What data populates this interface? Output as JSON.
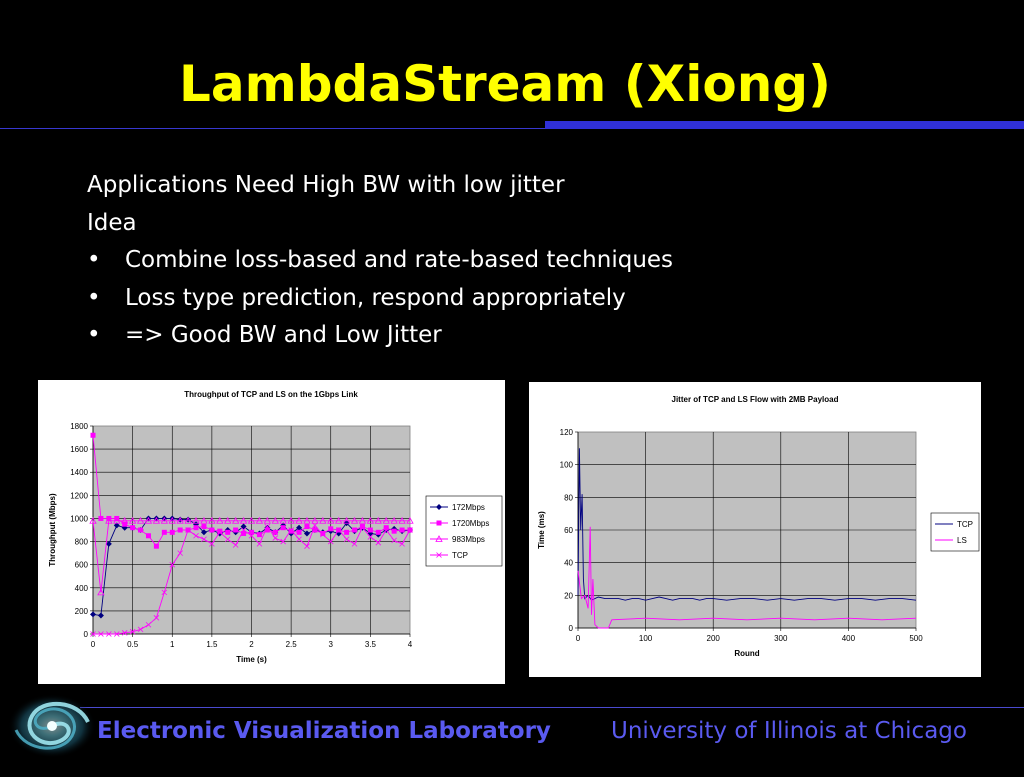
{
  "slide": {
    "title": "LambdaStream (Xiong)",
    "lines": [
      {
        "bullet": "",
        "text": "Applications Need High BW with low jitter"
      },
      {
        "bullet": "",
        "text": "Idea"
      },
      {
        "bullet": "•",
        "text": "Combine loss-based and rate-based techniques"
      },
      {
        "bullet": "•",
        "text": "Loss type prediction, respond  appropriately"
      },
      {
        "bullet": "•",
        "text": "=> Good BW and Low Jitter"
      }
    ],
    "footer_left": "Electronic Visualization Laboratory",
    "footer_right": "University of Illinois at Chicago"
  },
  "colors": {
    "title": "#ffff00",
    "footer": "#5a5af0",
    "rule": "#3030d8",
    "plot_bg": "#c0c0c0",
    "navy": "#000080",
    "magenta": "#ff00ff"
  },
  "icons": {
    "logo": "spiral-galaxy-logo"
  },
  "chart_data": [
    {
      "type": "line",
      "title": "Throughput of TCP and LS on the 1Gbps Link",
      "xlabel": "Time (s)",
      "ylabel": "Throughput (Mbps)",
      "xlim": [
        0,
        4
      ],
      "ylim": [
        0,
        1800
      ],
      "x_ticks": [
        "0",
        "0.5",
        "1",
        "1.5",
        "2",
        "2.5",
        "3",
        "3.5",
        "4"
      ],
      "y_ticks": [
        "0",
        "200",
        "400",
        "600",
        "800",
        "1000",
        "1200",
        "1400",
        "1600",
        "1800"
      ],
      "grid": true,
      "legend_position": "right",
      "x": [
        0,
        0.1,
        0.2,
        0.3,
        0.4,
        0.5,
        0.6,
        0.7,
        0.8,
        0.9,
        1.0,
        1.1,
        1.2,
        1.3,
        1.4,
        1.5,
        1.6,
        1.7,
        1.8,
        1.9,
        2.0,
        2.1,
        2.2,
        2.3,
        2.4,
        2.5,
        2.6,
        2.7,
        2.8,
        2.9,
        3.0,
        3.1,
        3.2,
        3.3,
        3.4,
        3.5,
        3.6,
        3.7,
        3.8,
        3.9,
        4.0
      ],
      "series": [
        {
          "name": "172Mbps",
          "color": "#000080",
          "marker": "diamond",
          "values": [
            170,
            160,
            780,
            940,
            920,
            920,
            900,
            1000,
            1000,
            1000,
            1000,
            990,
            990,
            950,
            880,
            900,
            870,
            900,
            880,
            930,
            880,
            870,
            920,
            880,
            940,
            870,
            920,
            870,
            900,
            880,
            890,
            870,
            960,
            890,
            920,
            870,
            860,
            900,
            910,
            890,
            900
          ]
        },
        {
          "name": "1720Mbps",
          "color": "#ff00ff",
          "marker": "square",
          "values": [
            1720,
            1000,
            1000,
            1000,
            950,
            920,
            900,
            850,
            760,
            880,
            880,
            900,
            900,
            920,
            930,
            900,
            890,
            880,
            900,
            870,
            880,
            860,
            900,
            880,
            920,
            890,
            880,
            930,
            900,
            870,
            910,
            900,
            880,
            900,
            930,
            900,
            880,
            920,
            890,
            900,
            900
          ]
        },
        {
          "name": "983Mbps",
          "color": "#ff00ff",
          "marker": "triangle",
          "values": [
            980,
            360,
            980,
            980,
            980,
            980,
            980,
            980,
            980,
            980,
            980,
            980,
            980,
            980,
            980,
            980,
            980,
            980,
            980,
            980,
            980,
            980,
            980,
            980,
            980,
            980,
            980,
            980,
            980,
            980,
            980,
            980,
            980,
            980,
            980,
            980,
            980,
            980,
            980,
            980,
            980
          ]
        },
        {
          "name": "TCP",
          "color": "#ff00ff",
          "marker": "x",
          "values": [
            0,
            0,
            0,
            0,
            10,
            20,
            40,
            80,
            140,
            360,
            600,
            700,
            900,
            850,
            820,
            780,
            880,
            820,
            770,
            900,
            850,
            780,
            930,
            830,
            800,
            900,
            820,
            760,
            940,
            860,
            800,
            900,
            820,
            780,
            920,
            840,
            790,
            900,
            810,
            780,
            900
          ]
        }
      ]
    },
    {
      "type": "line",
      "title": "Jitter of TCP and LS Flow with 2MB Payload",
      "xlabel": "Round",
      "ylabel": "Time (ms)",
      "xlim": [
        0,
        500
      ],
      "ylim": [
        0,
        120
      ],
      "x_ticks": [
        "0",
        "100",
        "200",
        "300",
        "400",
        "500"
      ],
      "y_ticks": [
        "0",
        "20",
        "40",
        "60",
        "80",
        "100",
        "120"
      ],
      "grid": true,
      "legend_position": "right",
      "series": [
        {
          "name": "TCP",
          "color": "#000080",
          "x": [
            0,
            2,
            4,
            6,
            8,
            10,
            15,
            20,
            30,
            40,
            50,
            60,
            70,
            80,
            90,
            100,
            110,
            120,
            130,
            140,
            150,
            160,
            170,
            180,
            190,
            200,
            220,
            240,
            260,
            280,
            300,
            320,
            340,
            360,
            380,
            400,
            420,
            440,
            460,
            480,
            500
          ],
          "values": [
            20,
            110,
            60,
            82,
            30,
            18,
            20,
            17,
            19,
            18,
            18,
            18,
            17,
            18,
            18,
            17,
            18,
            19,
            18,
            17,
            18,
            18,
            18,
            17,
            18,
            18,
            17,
            18,
            18,
            17,
            18,
            17,
            18,
            18,
            17,
            18,
            18,
            17,
            18,
            18,
            17
          ]
        },
        {
          "name": "LS",
          "color": "#ff00ff",
          "x": [
            0,
            5,
            10,
            15,
            18,
            20,
            22,
            25,
            30,
            35,
            40,
            45,
            50,
            100,
            150,
            200,
            250,
            300,
            350,
            400,
            450,
            500
          ],
          "values": [
            35,
            18,
            20,
            12,
            62,
            8,
            30,
            2,
            0,
            0,
            0,
            0,
            5,
            6,
            5,
            6,
            5,
            6,
            5,
            6,
            5,
            6
          ]
        }
      ]
    }
  ]
}
